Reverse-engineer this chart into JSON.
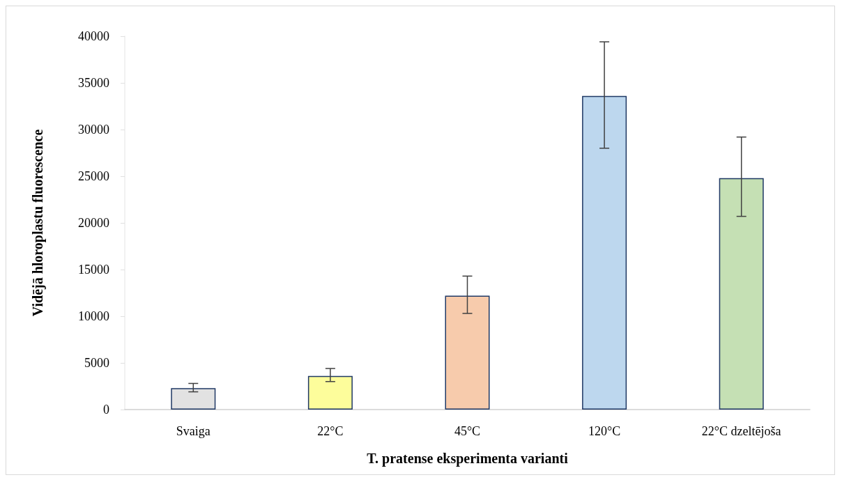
{
  "chart_data": {
    "type": "bar",
    "xlabel": "T. pratense eksperimenta varianti",
    "ylabel": "Vidējā hloroplastu fluorescence",
    "categories": [
      "Svaiga",
      "22°C",
      "45°C",
      "120°C",
      "22°C dzeltējoša"
    ],
    "values": [
      2300,
      3600,
      12200,
      33600,
      24800
    ],
    "colors": [
      "#e2e2e2",
      "#fdfd9b",
      "#f7cbac",
      "#bdd7ee",
      "#c5e0b4"
    ],
    "errors": [
      [
        1900,
        2800
      ],
      [
        3000,
        4400
      ],
      [
        10300,
        14300
      ],
      [
        28000,
        39400
      ],
      [
        20700,
        29200
      ]
    ],
    "ylim": [
      0,
      40000
    ],
    "yticks": [
      0,
      5000,
      10000,
      15000,
      20000,
      25000,
      30000,
      35000,
      40000
    ],
    "grid": false
  }
}
